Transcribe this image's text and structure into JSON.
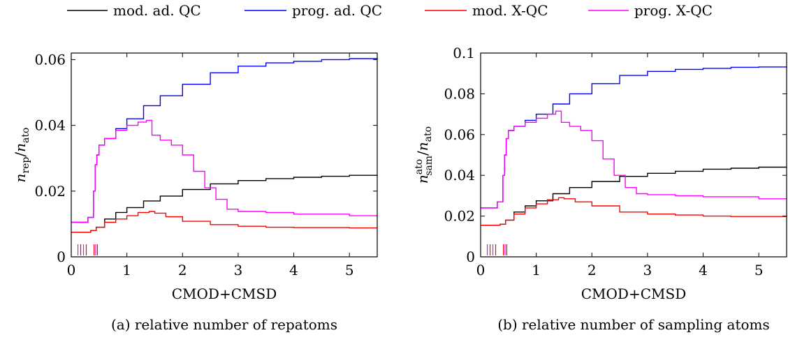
{
  "legend": [
    {
      "label": "mod. ad. QC",
      "color": "#000000"
    },
    {
      "label": "prog. ad. QC",
      "color": "#0000ff"
    },
    {
      "label": "mod. X-QC",
      "color": "#ff0000"
    },
    {
      "label": "prog. X-QC",
      "color": "#ff00ff"
    }
  ],
  "chart_data": [
    {
      "type": "line",
      "caption": "(a) relative number of repatoms",
      "xlabel": "CMOD+CMSD",
      "ylabel": "n_rep/n_ato",
      "ylabel_parts": {
        "n1": "n",
        "sub1": "rep",
        "slash": "/",
        "n2": "n",
        "sub2": "ato"
      },
      "xlim": [
        0,
        5.5
      ],
      "ylim": [
        0,
        0.062
      ],
      "xticks": [
        "0",
        "1",
        "2",
        "3",
        "4",
        "5"
      ],
      "yticks": [
        "0",
        "0.02",
        "0.04",
        "0.06"
      ],
      "xtick_values": [
        0,
        1,
        2,
        3,
        4,
        5
      ],
      "ytick_values": [
        0,
        0.02,
        0.04,
        0.06
      ],
      "series": [
        {
          "name": "mod. ad. QC",
          "color": "#000000",
          "x": [
            0,
            0.2,
            0.35,
            0.45,
            0.6,
            0.8,
            1.0,
            1.3,
            1.6,
            2.0,
            2.5,
            3.0,
            3.5,
            4.0,
            4.5,
            5.0,
            5.5
          ],
          "y": [
            0.0075,
            0.0075,
            0.008,
            0.009,
            0.0115,
            0.0135,
            0.015,
            0.017,
            0.0185,
            0.0205,
            0.0222,
            0.0232,
            0.0238,
            0.0242,
            0.0245,
            0.0248,
            0.025
          ]
        },
        {
          "name": "prog. ad. QC",
          "color": "#0000ff",
          "x": [
            0,
            0.2,
            0.3,
            0.4,
            0.43,
            0.46,
            0.5,
            0.6,
            0.8,
            1.0,
            1.3,
            1.6,
            2.0,
            2.5,
            3.0,
            3.5,
            4.0,
            4.5,
            5.0,
            5.5
          ],
          "y": [
            0.0105,
            0.0105,
            0.012,
            0.02,
            0.028,
            0.031,
            0.034,
            0.036,
            0.039,
            0.042,
            0.046,
            0.049,
            0.0525,
            0.056,
            0.058,
            0.059,
            0.0595,
            0.06,
            0.0603,
            0.0605
          ]
        },
        {
          "name": "mod. X-QC",
          "color": "#ff0000",
          "x": [
            0,
            0.2,
            0.35,
            0.45,
            0.6,
            0.8,
            1.0,
            1.2,
            1.4,
            1.5,
            1.7,
            2.0,
            2.5,
            3.0,
            3.5,
            4.0,
            4.5,
            5.0,
            5.5
          ],
          "y": [
            0.0075,
            0.0075,
            0.008,
            0.009,
            0.0105,
            0.0115,
            0.0125,
            0.0135,
            0.0138,
            0.0133,
            0.0122,
            0.0108,
            0.0098,
            0.0093,
            0.009,
            0.0089,
            0.0089,
            0.0088,
            0.0088
          ]
        },
        {
          "name": "prog. X-QC",
          "color": "#ff00ff",
          "x": [
            0,
            0.2,
            0.3,
            0.4,
            0.43,
            0.46,
            0.5,
            0.6,
            0.8,
            1.0,
            1.2,
            1.35,
            1.45,
            1.6,
            1.8,
            2.0,
            2.2,
            2.4,
            2.6,
            2.8,
            3.0,
            3.5,
            4.0,
            5.0,
            5.5
          ],
          "y": [
            0.0105,
            0.0105,
            0.012,
            0.02,
            0.028,
            0.031,
            0.034,
            0.036,
            0.0385,
            0.04,
            0.041,
            0.0415,
            0.037,
            0.0355,
            0.034,
            0.031,
            0.026,
            0.021,
            0.0175,
            0.0145,
            0.0138,
            0.0135,
            0.013,
            0.0125,
            0.0122
          ]
        }
      ],
      "markers": [
        {
          "color": "#ff00ff",
          "x": [
            0.12,
            0.22,
            0.44
          ]
        },
        {
          "color": "#ff0000",
          "x": [
            0.17,
            0.27,
            0.41,
            0.47
          ]
        }
      ]
    },
    {
      "type": "line",
      "caption": "(b) relative number of sampling atoms",
      "xlabel": "CMOD+CMSD",
      "ylabel": "n_sam^ato/n_ato",
      "ylabel_parts": {
        "n1": "n",
        "sup1": "ato",
        "sub1": "sam",
        "slash": "/",
        "n2": "n",
        "sub2": "ato"
      },
      "xlim": [
        0,
        5.5
      ],
      "ylim": [
        0,
        0.1
      ],
      "xticks": [
        "0",
        "1",
        "2",
        "3",
        "4",
        "5"
      ],
      "yticks": [
        "0",
        "0.02",
        "0.04",
        "0.06",
        "0.08",
        "0.1"
      ],
      "xtick_values": [
        0,
        1,
        2,
        3,
        4,
        5
      ],
      "ytick_values": [
        0,
        0.02,
        0.04,
        0.06,
        0.08,
        0.1
      ],
      "series": [
        {
          "name": "mod. ad. QC",
          "color": "#000000",
          "x": [
            0,
            0.2,
            0.35,
            0.45,
            0.6,
            0.8,
            1.0,
            1.3,
            1.6,
            2.0,
            2.5,
            3.0,
            3.5,
            4.0,
            4.5,
            5.0,
            5.5
          ],
          "y": [
            0.0155,
            0.0155,
            0.016,
            0.018,
            0.022,
            0.025,
            0.0275,
            0.031,
            0.034,
            0.037,
            0.0395,
            0.041,
            0.042,
            0.043,
            0.0435,
            0.044,
            0.0442
          ]
        },
        {
          "name": "prog. ad. QC",
          "color": "#0000ff",
          "x": [
            0,
            0.2,
            0.3,
            0.4,
            0.43,
            0.46,
            0.5,
            0.6,
            0.8,
            1.0,
            1.3,
            1.6,
            2.0,
            2.5,
            3.0,
            3.5,
            4.0,
            4.5,
            5.0,
            5.5
          ],
          "y": [
            0.024,
            0.024,
            0.027,
            0.04,
            0.05,
            0.058,
            0.062,
            0.064,
            0.067,
            0.07,
            0.075,
            0.08,
            0.085,
            0.089,
            0.091,
            0.092,
            0.0925,
            0.093,
            0.0932,
            0.0933
          ]
        },
        {
          "name": "mod. X-QC",
          "color": "#ff0000",
          "x": [
            0,
            0.2,
            0.35,
            0.45,
            0.6,
            0.8,
            1.0,
            1.2,
            1.4,
            1.5,
            1.7,
            2.0,
            2.5,
            3.0,
            3.5,
            4.0,
            4.5,
            5.0,
            5.5
          ],
          "y": [
            0.0155,
            0.0155,
            0.016,
            0.018,
            0.021,
            0.024,
            0.026,
            0.028,
            0.029,
            0.0285,
            0.027,
            0.025,
            0.022,
            0.021,
            0.0205,
            0.02,
            0.0198,
            0.0198,
            0.0198
          ]
        },
        {
          "name": "prog. X-QC",
          "color": "#ff00ff",
          "x": [
            0,
            0.2,
            0.3,
            0.4,
            0.43,
            0.46,
            0.5,
            0.6,
            0.8,
            1.0,
            1.2,
            1.35,
            1.45,
            1.6,
            1.8,
            2.0,
            2.2,
            2.4,
            2.6,
            2.8,
            3.0,
            3.5,
            4.0,
            5.0,
            5.5
          ],
          "y": [
            0.024,
            0.024,
            0.027,
            0.04,
            0.05,
            0.058,
            0.062,
            0.064,
            0.066,
            0.068,
            0.07,
            0.0715,
            0.066,
            0.064,
            0.062,
            0.057,
            0.048,
            0.04,
            0.034,
            0.031,
            0.0305,
            0.03,
            0.0295,
            0.0285,
            0.0285
          ]
        }
      ],
      "markers": [
        {
          "color": "#ff00ff",
          "x": [
            0.12,
            0.22,
            0.44
          ]
        },
        {
          "color": "#ff0000",
          "x": [
            0.17,
            0.27,
            0.41,
            0.47
          ]
        }
      ]
    }
  ]
}
